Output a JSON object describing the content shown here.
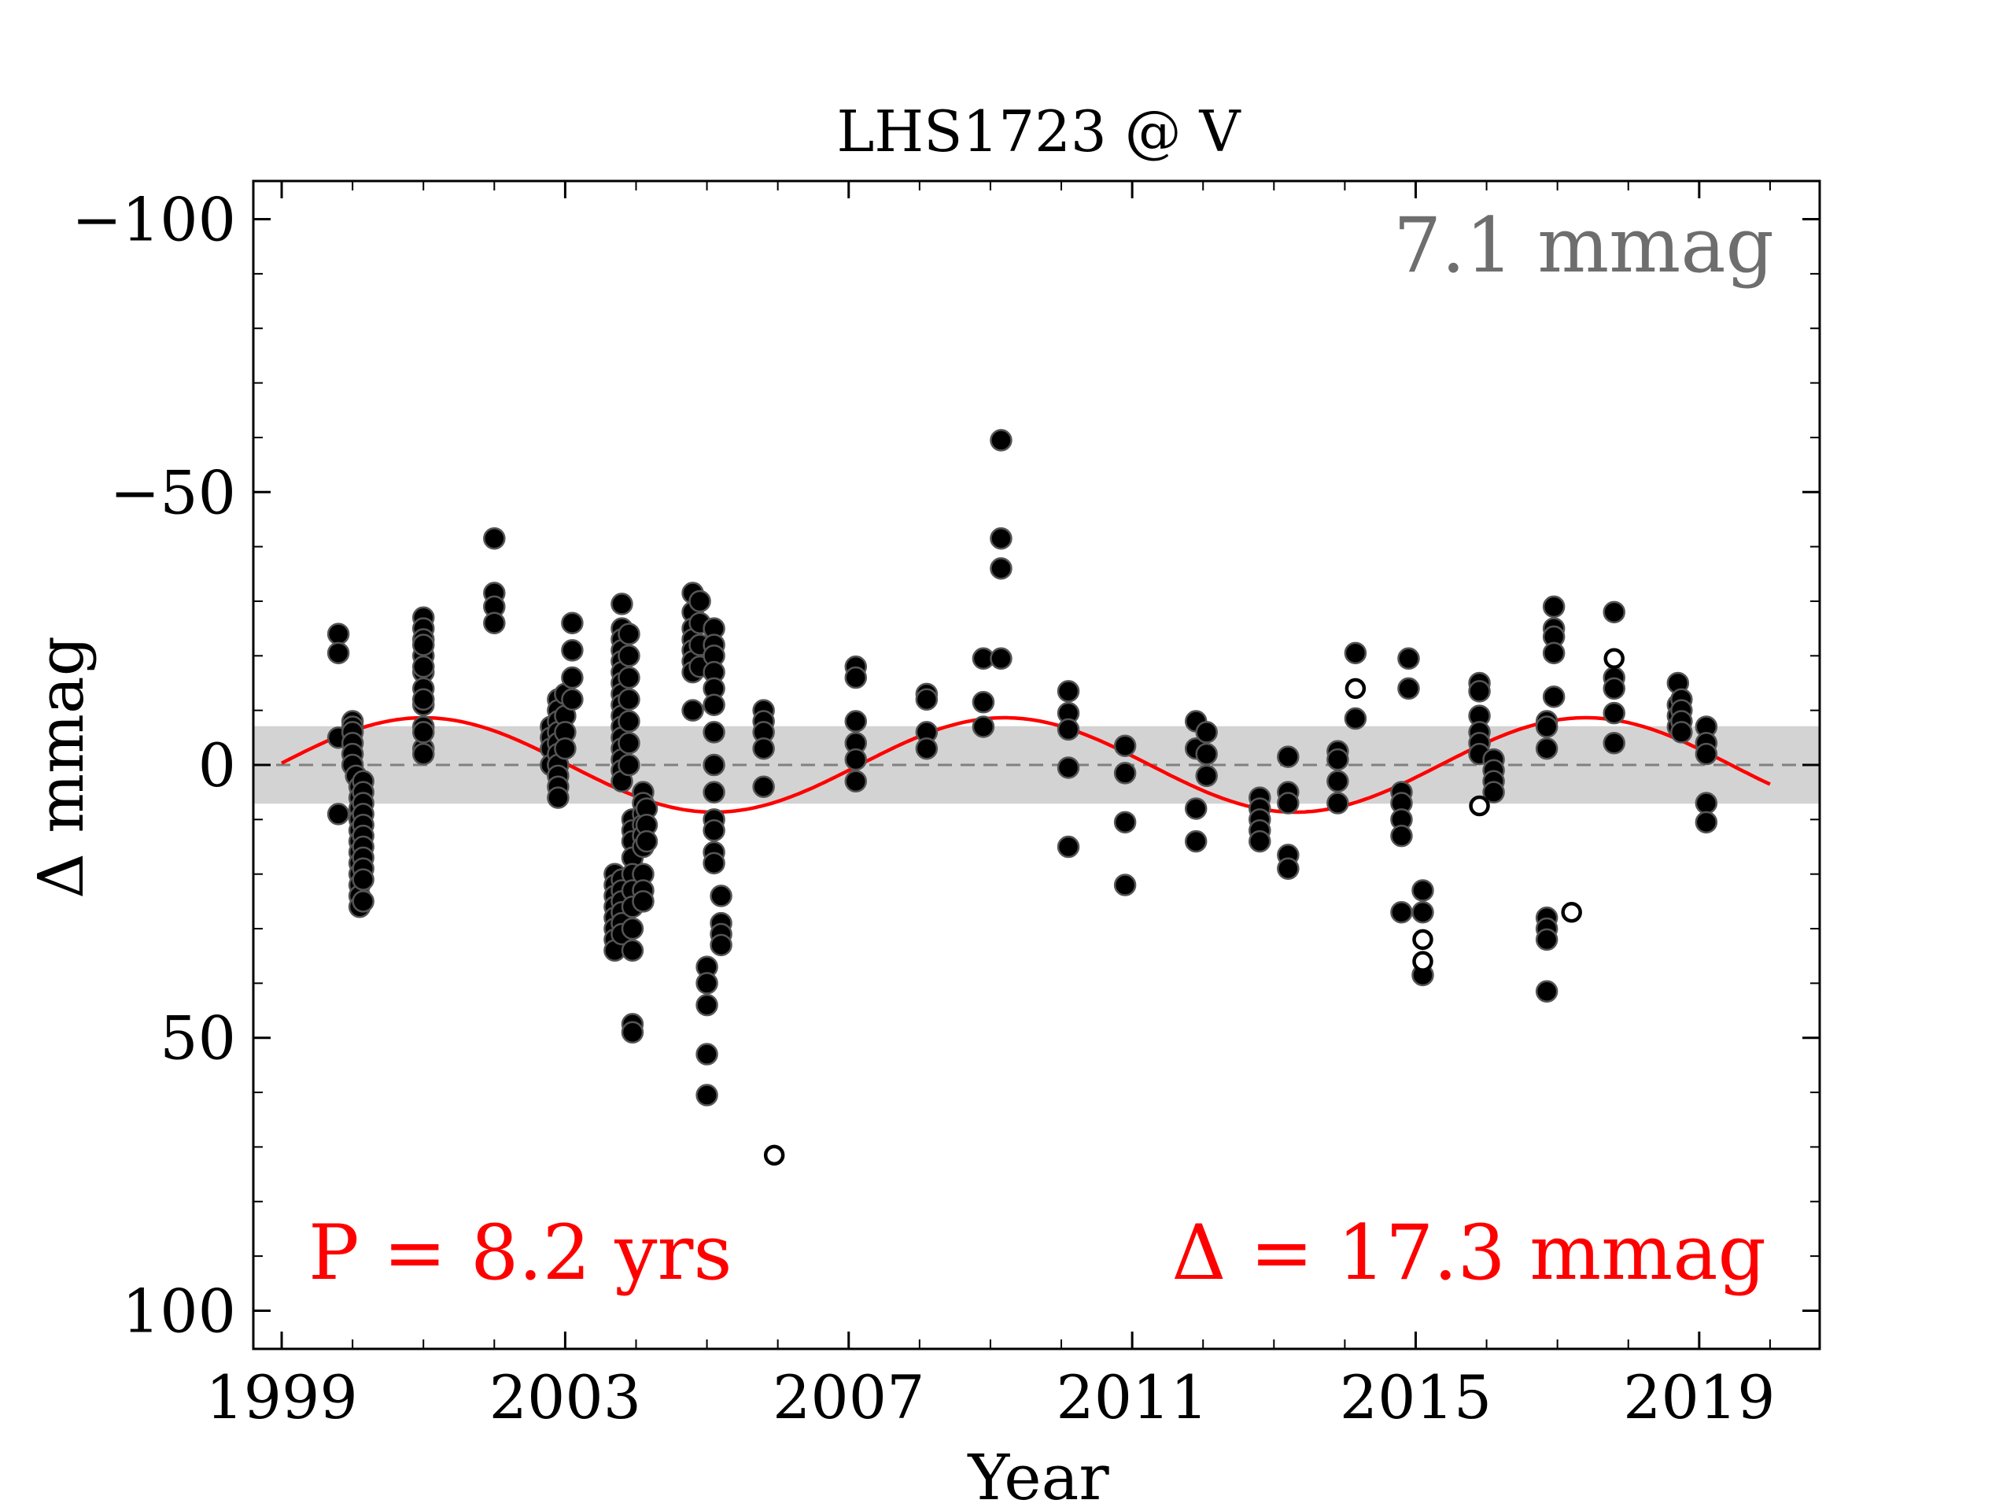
{
  "colors": {
    "fit_curve": "#ff0000",
    "band": "#d3d3d3",
    "points": "#000000",
    "rms_text": "#6e6e6e",
    "zero_line": "#808080"
  },
  "chart_data": {
    "type": "scatter",
    "title": "LHS1723 @ V",
    "xlabel": "Year",
    "ylabel": "Δ  mmag",
    "xlim": [
      1998.6,
      2020.7
    ],
    "ylim": [
      -107,
      107
    ],
    "y_inverted": true,
    "xticks": [
      1999,
      2003,
      2007,
      2011,
      2015,
      2019
    ],
    "yticks": [
      -100,
      -50,
      0,
      50,
      100
    ],
    "ytick_labels": [
      "−100",
      "−50",
      "0",
      "50",
      "100"
    ],
    "rms_label": "7.1 mmag",
    "rms_band": 7.1,
    "period_label": "P = 8.2 yrs",
    "amplitude_label": "Δ = 17.3 mmag",
    "fit": {
      "period_years": 8.2,
      "semi_amplitude": 8.65,
      "peak_year": 2001.0,
      "start_year": 1999.0,
      "end_year": 2020.0
    },
    "series": [
      {
        "marker": "filled",
        "points": [
          [
            1999.8,
            -24
          ],
          [
            1999.8,
            -20.5
          ],
          [
            1999.8,
            -5
          ],
          [
            1999.8,
            9
          ],
          [
            2000.0,
            -8
          ],
          [
            2000.0,
            -7
          ],
          [
            2000.0,
            -6
          ],
          [
            2000.0,
            -4
          ],
          [
            2000.0,
            -2
          ],
          [
            2000.0,
            0
          ],
          [
            2000.05,
            2
          ],
          [
            2000.1,
            4
          ],
          [
            2000.1,
            6
          ],
          [
            2000.1,
            8
          ],
          [
            2000.1,
            10
          ],
          [
            2000.1,
            12
          ],
          [
            2000.1,
            14
          ],
          [
            2000.1,
            16
          ],
          [
            2000.1,
            18
          ],
          [
            2000.1,
            20
          ],
          [
            2000.1,
            22
          ],
          [
            2000.1,
            24
          ],
          [
            2000.1,
            26
          ],
          [
            2000.15,
            3
          ],
          [
            2000.15,
            5
          ],
          [
            2000.15,
            7
          ],
          [
            2000.15,
            9
          ],
          [
            2000.15,
            11
          ],
          [
            2000.15,
            13
          ],
          [
            2000.15,
            15
          ],
          [
            2000.15,
            17
          ],
          [
            2000.15,
            19
          ],
          [
            2000.15,
            21
          ],
          [
            2000.15,
            25
          ],
          [
            2001.0,
            -27
          ],
          [
            2001.0,
            -25
          ],
          [
            2001.0,
            -23
          ],
          [
            2001.0,
            -20
          ],
          [
            2001.0,
            -17
          ],
          [
            2001.0,
            -14
          ],
          [
            2001.0,
            -11
          ],
          [
            2001.0,
            -7
          ],
          [
            2001.0,
            -3
          ],
          [
            2001.0,
            -22
          ],
          [
            2001.0,
            -18
          ],
          [
            2001.0,
            -12
          ],
          [
            2001.0,
            -6
          ],
          [
            2001.0,
            -2
          ],
          [
            2002.0,
            -41.5
          ],
          [
            2002.0,
            -31.5
          ],
          [
            2002.0,
            -29
          ],
          [
            2002.0,
            -26
          ],
          [
            2002.8,
            -7
          ],
          [
            2002.8,
            -5
          ],
          [
            2002.8,
            -3
          ],
          [
            2002.8,
            0
          ],
          [
            2002.9,
            -12
          ],
          [
            2002.9,
            -10
          ],
          [
            2002.9,
            -8
          ],
          [
            2002.9,
            -6
          ],
          [
            2002.9,
            -4
          ],
          [
            2002.9,
            -2
          ],
          [
            2002.9,
            0
          ],
          [
            2002.9,
            2
          ],
          [
            2002.9,
            4
          ],
          [
            2002.9,
            6
          ],
          [
            2003.0,
            -13
          ],
          [
            2003.0,
            -9
          ],
          [
            2003.0,
            -6
          ],
          [
            2003.0,
            -3
          ],
          [
            2003.1,
            -26
          ],
          [
            2003.1,
            -21
          ],
          [
            2003.1,
            -16
          ],
          [
            2003.1,
            -12
          ],
          [
            2003.7,
            20
          ],
          [
            2003.7,
            22
          ],
          [
            2003.7,
            24
          ],
          [
            2003.7,
            26
          ],
          [
            2003.7,
            28
          ],
          [
            2003.7,
            30
          ],
          [
            2003.7,
            32
          ],
          [
            2003.7,
            34
          ],
          [
            2003.8,
            -29.5
          ],
          [
            2003.8,
            -25
          ],
          [
            2003.8,
            -23
          ],
          [
            2003.8,
            -21
          ],
          [
            2003.8,
            -19
          ],
          [
            2003.8,
            -17
          ],
          [
            2003.8,
            -15
          ],
          [
            2003.8,
            -13
          ],
          [
            2003.8,
            -11
          ],
          [
            2003.8,
            -9
          ],
          [
            2003.8,
            -7
          ],
          [
            2003.8,
            -5
          ],
          [
            2003.8,
            -3
          ],
          [
            2003.8,
            -1
          ],
          [
            2003.8,
            1
          ],
          [
            2003.8,
            3
          ],
          [
            2003.8,
            21
          ],
          [
            2003.8,
            23
          ],
          [
            2003.8,
            25
          ],
          [
            2003.8,
            27
          ],
          [
            2003.8,
            29
          ],
          [
            2003.8,
            31
          ],
          [
            2003.9,
            -24
          ],
          [
            2003.9,
            -20
          ],
          [
            2003.9,
            -16
          ],
          [
            2003.9,
            -12
          ],
          [
            2003.9,
            -8
          ],
          [
            2003.9,
            -4
          ],
          [
            2003.9,
            0
          ],
          [
            2003.95,
            10
          ],
          [
            2003.95,
            12
          ],
          [
            2003.95,
            14
          ],
          [
            2003.95,
            17
          ],
          [
            2003.95,
            20
          ],
          [
            2003.95,
            23
          ],
          [
            2003.95,
            26
          ],
          [
            2003.95,
            30
          ],
          [
            2003.95,
            34
          ],
          [
            2003.95,
            47.5
          ],
          [
            2003.95,
            49
          ],
          [
            2004.1,
            5
          ],
          [
            2004.1,
            7
          ],
          [
            2004.1,
            9
          ],
          [
            2004.1,
            11
          ],
          [
            2004.1,
            13
          ],
          [
            2004.1,
            15
          ],
          [
            2004.1,
            20
          ],
          [
            2004.1,
            23
          ],
          [
            2004.1,
            25
          ],
          [
            2004.15,
            8
          ],
          [
            2004.15,
            11
          ],
          [
            2004.15,
            14
          ],
          [
            2004.8,
            -31.5
          ],
          [
            2004.8,
            -28
          ],
          [
            2004.8,
            -25
          ],
          [
            2004.8,
            -23
          ],
          [
            2004.8,
            -21
          ],
          [
            2004.8,
            -19
          ],
          [
            2004.8,
            -17
          ],
          [
            2004.8,
            -10
          ],
          [
            2004.9,
            -30
          ],
          [
            2004.9,
            -26
          ],
          [
            2004.9,
            -22
          ],
          [
            2004.9,
            -18
          ],
          [
            2005.0,
            37
          ],
          [
            2005.0,
            40
          ],
          [
            2005.0,
            44
          ],
          [
            2005.0,
            53
          ],
          [
            2005.0,
            60.5
          ],
          [
            2005.1,
            -25
          ],
          [
            2005.1,
            -22
          ],
          [
            2005.1,
            -20
          ],
          [
            2005.1,
            -17
          ],
          [
            2005.1,
            -14
          ],
          [
            2005.1,
            -11
          ],
          [
            2005.1,
            -6
          ],
          [
            2005.1,
            0
          ],
          [
            2005.1,
            5
          ],
          [
            2005.1,
            10
          ],
          [
            2005.1,
            12
          ],
          [
            2005.1,
            16
          ],
          [
            2005.1,
            18
          ],
          [
            2005.2,
            24
          ],
          [
            2005.2,
            29
          ],
          [
            2005.2,
            31
          ],
          [
            2005.2,
            33
          ],
          [
            2005.8,
            -10
          ],
          [
            2005.8,
            -8
          ],
          [
            2005.8,
            -6
          ],
          [
            2005.8,
            -3
          ],
          [
            2005.8,
            4
          ],
          [
            2007.1,
            -18
          ],
          [
            2007.1,
            -16
          ],
          [
            2007.1,
            -8
          ],
          [
            2007.1,
            -4
          ],
          [
            2007.1,
            -1
          ],
          [
            2007.1,
            3
          ],
          [
            2008.1,
            -13
          ],
          [
            2008.1,
            -12
          ],
          [
            2008.1,
            -6
          ],
          [
            2008.1,
            -3
          ],
          [
            2008.9,
            -19.5
          ],
          [
            2008.9,
            -11.5
          ],
          [
            2008.9,
            -7
          ],
          [
            2009.15,
            -59.5
          ],
          [
            2009.15,
            -41.5
          ],
          [
            2009.15,
            -36
          ],
          [
            2009.15,
            -19.5
          ],
          [
            2010.1,
            -13.5
          ],
          [
            2010.1,
            -9.5
          ],
          [
            2010.1,
            -6.5
          ],
          [
            2010.1,
            0.5
          ],
          [
            2010.1,
            15
          ],
          [
            2010.9,
            -3.5
          ],
          [
            2010.9,
            1.5
          ],
          [
            2010.9,
            10.5
          ],
          [
            2010.9,
            22
          ],
          [
            2011.9,
            -8
          ],
          [
            2011.9,
            -3
          ],
          [
            2011.9,
            8
          ],
          [
            2011.9,
            14
          ],
          [
            2012.05,
            -6
          ],
          [
            2012.05,
            -2
          ],
          [
            2012.05,
            2
          ],
          [
            2012.8,
            6
          ],
          [
            2012.8,
            8
          ],
          [
            2012.8,
            10
          ],
          [
            2012.8,
            12
          ],
          [
            2012.8,
            14
          ],
          [
            2013.2,
            -1.5
          ],
          [
            2013.2,
            5
          ],
          [
            2013.2,
            7
          ],
          [
            2013.2,
            16.5
          ],
          [
            2013.2,
            19
          ],
          [
            2013.9,
            -2.5
          ],
          [
            2013.9,
            -1
          ],
          [
            2013.9,
            3
          ],
          [
            2013.9,
            7
          ],
          [
            2014.15,
            -20.5
          ],
          [
            2014.15,
            -8.5
          ],
          [
            2014.8,
            5
          ],
          [
            2014.8,
            7
          ],
          [
            2014.8,
            10
          ],
          [
            2014.8,
            13
          ],
          [
            2014.8,
            27
          ],
          [
            2014.9,
            -19.5
          ],
          [
            2014.9,
            -14
          ],
          [
            2015.1,
            23
          ],
          [
            2015.1,
            27
          ],
          [
            2015.1,
            38.5
          ],
          [
            2015.9,
            -15
          ],
          [
            2015.9,
            -13.5
          ],
          [
            2015.9,
            -9
          ],
          [
            2015.9,
            -6
          ],
          [
            2015.9,
            -4
          ],
          [
            2015.9,
            -2
          ],
          [
            2016.1,
            -1
          ],
          [
            2016.1,
            1
          ],
          [
            2016.1,
            3
          ],
          [
            2016.1,
            5
          ],
          [
            2016.85,
            -8
          ],
          [
            2016.85,
            -7
          ],
          [
            2016.85,
            -3
          ],
          [
            2016.85,
            28
          ],
          [
            2016.85,
            30
          ],
          [
            2016.85,
            32
          ],
          [
            2016.85,
            41.5
          ],
          [
            2016.95,
            -29
          ],
          [
            2016.95,
            -25
          ],
          [
            2016.95,
            -23.5
          ],
          [
            2016.95,
            -20.5
          ],
          [
            2016.95,
            -12.5
          ],
          [
            2017.8,
            -28
          ],
          [
            2017.8,
            -16
          ],
          [
            2017.8,
            -14
          ],
          [
            2017.8,
            -9.5
          ],
          [
            2017.8,
            -4
          ],
          [
            2018.7,
            -15
          ],
          [
            2018.7,
            -11
          ],
          [
            2018.7,
            -9
          ],
          [
            2018.7,
            -7
          ],
          [
            2018.75,
            -12
          ],
          [
            2018.75,
            -10
          ],
          [
            2018.75,
            -8
          ],
          [
            2018.75,
            -6
          ],
          [
            2019.1,
            -7
          ],
          [
            2019.1,
            -4
          ],
          [
            2019.1,
            -2
          ],
          [
            2019.1,
            7
          ],
          [
            2019.1,
            10.5
          ]
        ]
      },
      {
        "marker": "open",
        "points": [
          [
            2005.95,
            71.5
          ],
          [
            2014.15,
            -14
          ],
          [
            2015.9,
            7.5
          ],
          [
            2015.1,
            32
          ],
          [
            2015.1,
            36
          ],
          [
            2017.2,
            27
          ],
          [
            2017.8,
            -19.5
          ]
        ]
      }
    ]
  }
}
